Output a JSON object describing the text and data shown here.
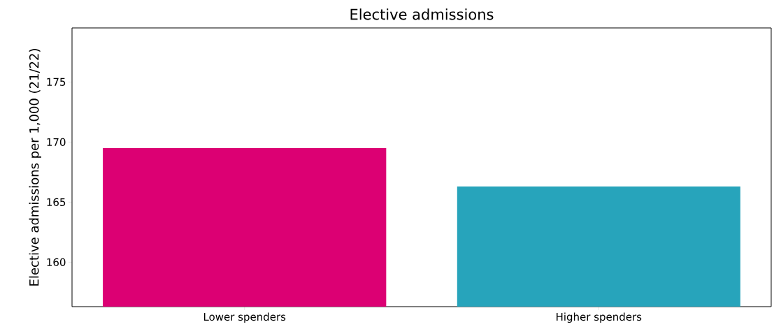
{
  "chart_data": {
    "type": "bar",
    "title": "Elective admissions",
    "ylabel": "Elective admissions per 1,000 (21/22)",
    "categories": [
      "Lower spenders",
      "Higher spenders"
    ],
    "values": [
      169.5,
      166.3
    ],
    "colors": [
      "#dc0073",
      "#27a4bb"
    ],
    "ylim": [
      156.3,
      179.5
    ],
    "yticks": [
      160,
      165,
      170,
      175
    ]
  }
}
